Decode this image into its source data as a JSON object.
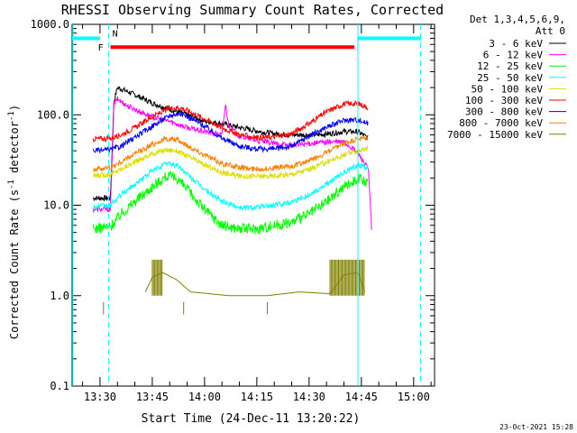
{
  "chart_data": {
    "type": "line",
    "title": "RHESSI Observing Summary Count Rates, Corrected",
    "xlabel": "Start Time (24-Dec-11 13:20:22)",
    "ylabel_main": "Corrected Count Rate (s",
    "ylabel_sup": "-1",
    "ylabel_mid": " detector",
    "ylabel_sup2": "-1",
    "ylabel_end": ")",
    "yscale": "log",
    "ylim": [
      0.1,
      1000
    ],
    "xlim_minutes": [
      802,
      906
    ],
    "x_ticks": [
      {
        "label": "13:30",
        "min": 810
      },
      {
        "label": "13:45",
        "min": 825
      },
      {
        "label": "14:00",
        "min": 840
      },
      {
        "label": "14:15",
        "min": 855
      },
      {
        "label": "14:30",
        "min": 870
      },
      {
        "label": "14:45",
        "min": 885
      },
      {
        "label": "15:00",
        "min": 900
      }
    ],
    "y_ticks": [
      {
        "label": "0.1",
        "v": 0.1
      },
      {
        "label": "1.0",
        "v": 1
      },
      {
        "label": "10.0",
        "v": 10
      },
      {
        "label": "100.0",
        "v": 100
      },
      {
        "label": "1000.0",
        "v": 1000
      }
    ],
    "legend_header": [
      "Det 1,3,4,5,6,9,",
      "Att 0"
    ],
    "series": [
      {
        "name": "3 - 6 keV",
        "color": "#000000",
        "x": [
          808,
          813,
          814,
          815,
          818,
          821,
          825,
          830,
          835,
          840,
          845,
          848,
          852,
          856,
          860,
          864,
          868,
          872,
          876,
          880,
          884,
          887
        ],
        "y": [
          12,
          12,
          140,
          200,
          180,
          160,
          135,
          115,
          100,
          85,
          80,
          75,
          70,
          65,
          62,
          60,
          60,
          60,
          62,
          65,
          65,
          55
        ]
      },
      {
        "name": "6 - 12 keV",
        "color": "#ff00ff",
        "x": [
          808,
          813,
          814,
          815,
          818,
          821,
          825,
          830,
          835,
          840,
          845,
          846,
          847,
          850,
          855,
          860,
          865,
          870,
          875,
          880,
          884,
          887,
          888
        ],
        "y": [
          9,
          9,
          130,
          150,
          125,
          110,
          95,
          85,
          72,
          65,
          60,
          130,
          75,
          58,
          52,
          48,
          46,
          48,
          50,
          50,
          38,
          25,
          5
        ]
      },
      {
        "name": "12 - 25 keV",
        "color": "#00ff00",
        "x": [
          808,
          813,
          816,
          820,
          825,
          829,
          832,
          835,
          840,
          845,
          850,
          855,
          860,
          865,
          870,
          875,
          880,
          884,
          887
        ],
        "y": [
          5.5,
          5.8,
          8,
          11,
          16,
          21,
          20,
          15,
          9,
          6,
          5.5,
          5.5,
          6,
          6.5,
          8,
          11,
          16,
          20,
          17
        ]
      },
      {
        "name": "25 - 50 keV",
        "color": "#00ffff",
        "x": [
          808,
          813,
          816,
          820,
          825,
          829,
          832,
          835,
          840,
          845,
          850,
          855,
          860,
          865,
          870,
          875,
          880,
          884,
          887
        ],
        "y": [
          9.5,
          10,
          13,
          17,
          24,
          29,
          28,
          22,
          15,
          11,
          9.5,
          9.5,
          10,
          11,
          13,
          17,
          23,
          28,
          26
        ]
      },
      {
        "name": "50 - 100 keV",
        "color": "#dddd00",
        "x": [
          808,
          813,
          816,
          820,
          825,
          829,
          832,
          835,
          840,
          845,
          850,
          855,
          860,
          865,
          870,
          875,
          880,
          884,
          887
        ],
        "y": [
          21,
          22,
          25,
          30,
          37,
          41,
          40,
          35,
          28,
          23,
          21,
          21,
          21,
          22,
          25,
          30,
          36,
          40,
          42
        ]
      },
      {
        "name": "100 - 300 keV",
        "color": "#ff0000",
        "x": [
          808,
          813,
          816,
          820,
          825,
          830,
          833,
          835,
          840,
          845,
          850,
          855,
          860,
          865,
          870,
          875,
          880,
          884,
          887
        ],
        "y": [
          54,
          55,
          60,
          72,
          95,
          118,
          120,
          112,
          90,
          72,
          60,
          56,
          57,
          62,
          80,
          108,
          132,
          133,
          120
        ]
      },
      {
        "name": "300 - 800 keV",
        "color": "#0000ff",
        "x": [
          808,
          813,
          816,
          820,
          825,
          830,
          833,
          835,
          840,
          845,
          850,
          855,
          860,
          865,
          870,
          875,
          880,
          884,
          887
        ],
        "y": [
          40,
          41,
          45,
          56,
          75,
          98,
          104,
          96,
          75,
          55,
          45,
          42,
          42,
          45,
          58,
          73,
          87,
          88,
          80
        ]
      },
      {
        "name": "800 - 7000 keV",
        "color": "#ff8000",
        "x": [
          808,
          813,
          816,
          820,
          825,
          829,
          832,
          835,
          840,
          845,
          850,
          855,
          860,
          865,
          870,
          875,
          880,
          884,
          887
        ],
        "y": [
          25,
          26,
          30,
          37,
          47,
          54,
          53,
          46,
          36,
          29,
          26,
          25,
          26,
          27,
          31,
          38,
          48,
          54,
          55
        ]
      },
      {
        "name": "7000 - 15000 keV",
        "color": "#808000",
        "x": [
          823,
          825,
          828,
          832,
          836,
          847,
          858,
          867,
          876,
          880,
          884,
          886
        ],
        "y": [
          1.1,
          1.6,
          1.8,
          1.5,
          1.1,
          1.0,
          1.0,
          1.1,
          1.05,
          1.7,
          1.8,
          1.1
        ]
      }
    ],
    "markers": {
      "N_label": "N",
      "F_label": "F",
      "cyan_segments": [
        [
          802,
          810
        ],
        [
          884,
          902
        ]
      ],
      "red_segment": [
        813,
        883
      ],
      "solid_vlines": [
        802.2,
        884
      ],
      "dashed_vlines": [
        812.5,
        902
      ]
    }
  },
  "footer": {
    "date": "23-Oct-2021 15:28"
  }
}
